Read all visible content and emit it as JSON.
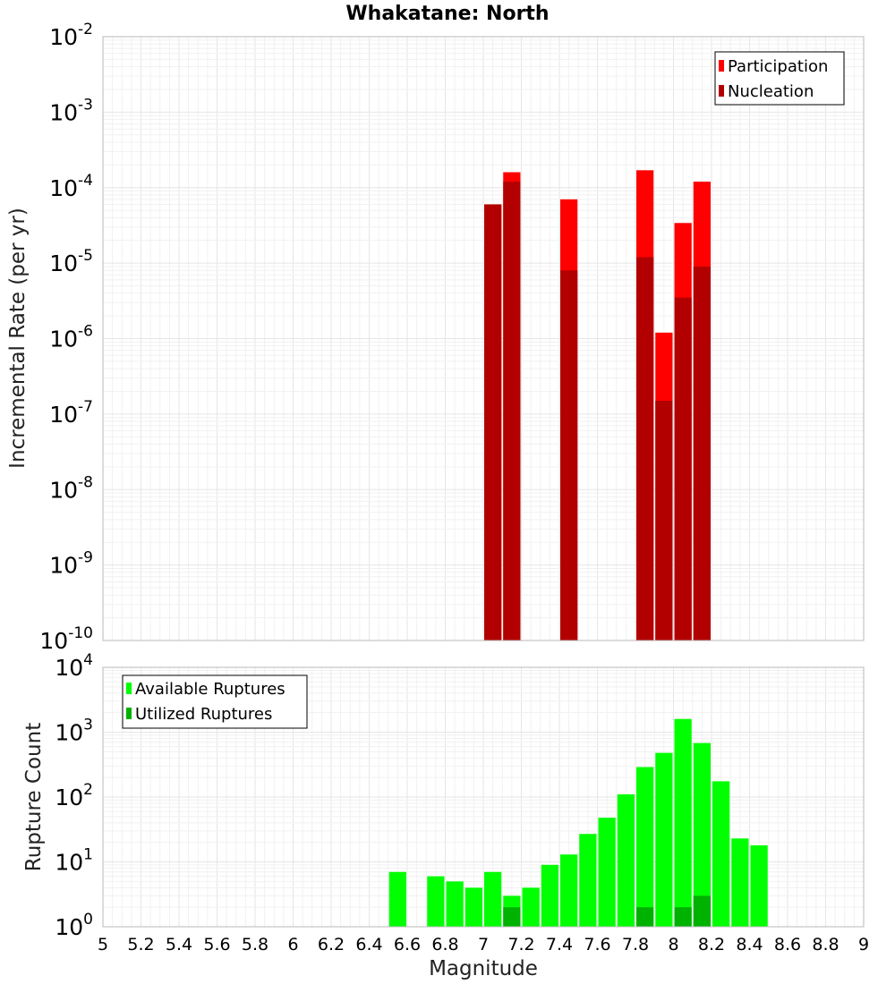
{
  "chart_data": [
    {
      "type": "bar",
      "title": "Whakatane: North",
      "xlabel": "",
      "ylabel": "Incremental Rate (per yr)",
      "log_y": true,
      "xlim": [
        5,
        9
      ],
      "ylim": [
        1e-10,
        0.01
      ],
      "y_tick_labels": [
        {
          "base": "10",
          "exp": "-10"
        },
        {
          "base": "10",
          "exp": "-9"
        },
        {
          "base": "10",
          "exp": "-8"
        },
        {
          "base": "10",
          "exp": "-7"
        },
        {
          "base": "10",
          "exp": "-6"
        },
        {
          "base": "10",
          "exp": "-5"
        },
        {
          "base": "10",
          "exp": "-4"
        },
        {
          "base": "10",
          "exp": "-3"
        },
        {
          "base": "10",
          "exp": "-2"
        }
      ],
      "grid": true,
      "legend_position": "top-right",
      "series": [
        {
          "name": "Participation",
          "color": "#ff0000",
          "x": [
            7.05,
            7.15,
            7.45,
            7.85,
            7.95,
            8.05,
            8.15
          ],
          "values": [
            6e-05,
            0.00016,
            7e-05,
            0.00017,
            1.2e-06,
            3.4e-05,
            0.00012
          ]
        },
        {
          "name": "Nucleation",
          "color": "#b20000",
          "x": [
            7.05,
            7.15,
            7.45,
            7.85,
            7.95,
            8.05,
            8.15
          ],
          "values": [
            6e-05,
            0.00012,
            8e-06,
            1.2e-05,
            1.5e-07,
            3.5e-06,
            9e-06
          ]
        }
      ]
    },
    {
      "type": "bar",
      "title": "",
      "xlabel": "Magnitude",
      "ylabel": "Rupture Count",
      "log_y": true,
      "xlim": [
        5,
        9
      ],
      "ylim": [
        1,
        10000.0
      ],
      "x_tick_labels": [
        "5",
        "5.2",
        "5.4",
        "5.6",
        "5.8",
        "6",
        "6.2",
        "6.4",
        "6.6",
        "6.8",
        "7",
        "7.2",
        "7.4",
        "7.6",
        "7.8",
        "8",
        "8.2",
        "8.4",
        "8.6",
        "8.8",
        "9"
      ],
      "y_tick_labels": [
        {
          "base": "10",
          "exp": "0"
        },
        {
          "base": "10",
          "exp": "1"
        },
        {
          "base": "10",
          "exp": "2"
        },
        {
          "base": "10",
          "exp": "3"
        },
        {
          "base": "10",
          "exp": "4"
        }
      ],
      "grid": true,
      "legend_position": "top-left",
      "series": [
        {
          "name": "Available Ruptures",
          "color": "#00ff00",
          "x": [
            6.55,
            6.75,
            6.85,
            6.95,
            7.05,
            7.15,
            7.25,
            7.35,
            7.45,
            7.55,
            7.65,
            7.75,
            7.85,
            7.95,
            8.05,
            8.15,
            8.25,
            8.35,
            8.45
          ],
          "values": [
            7,
            6,
            5,
            4,
            7,
            3,
            4,
            9,
            13,
            27,
            48,
            110,
            290,
            480,
            1600,
            680,
            175,
            23,
            18
          ]
        },
        {
          "name": "Utilized Ruptures",
          "color": "#00b200",
          "x": [
            7.05,
            7.15,
            7.45,
            7.85,
            7.95,
            8.05,
            8.15
          ],
          "values": [
            1,
            2,
            1,
            2,
            1,
            2,
            3
          ]
        }
      ]
    }
  ]
}
